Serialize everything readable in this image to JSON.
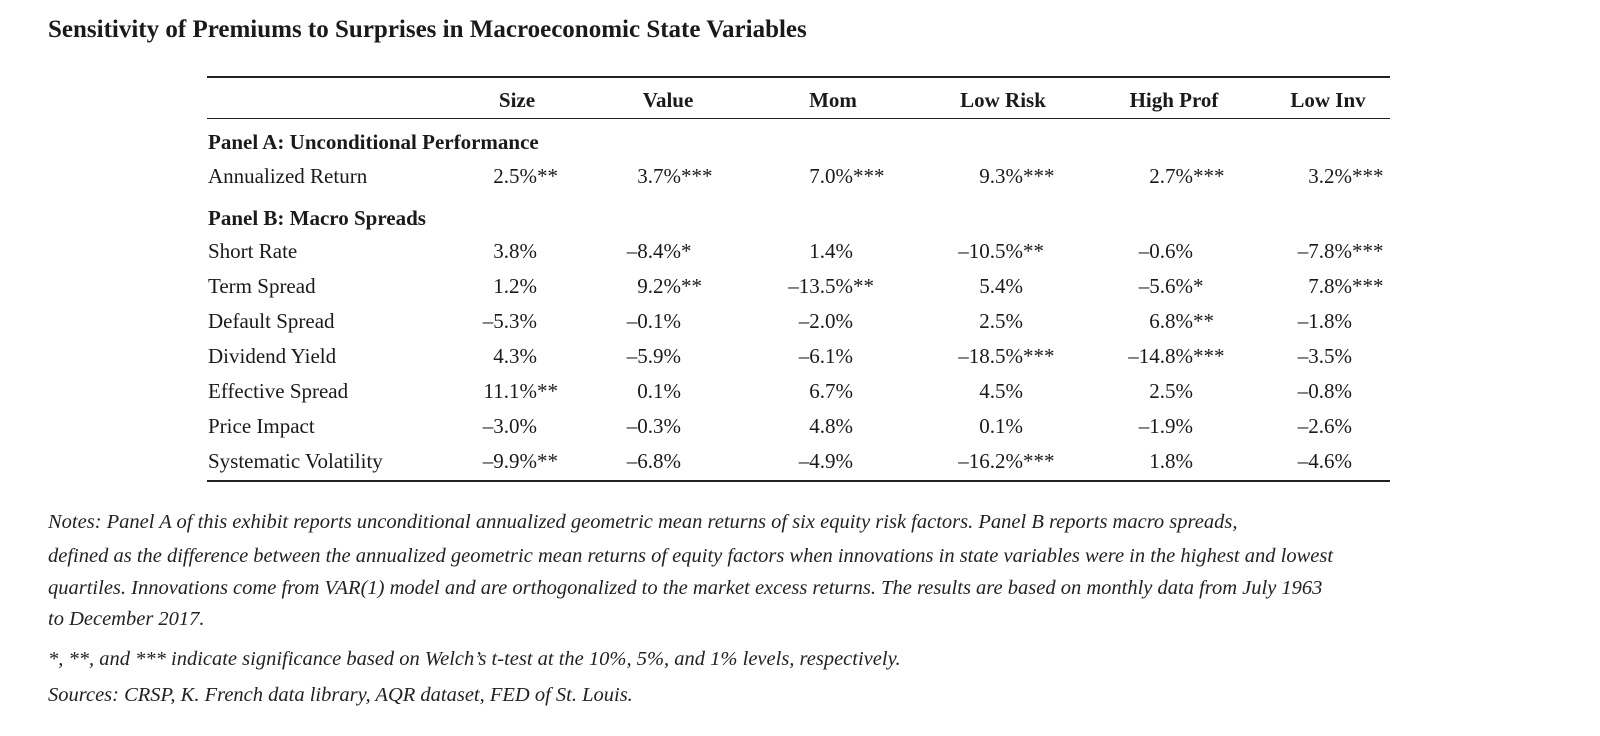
{
  "title": "Sensitivity of Premiums to Surprises in Macroeconomic State Variables",
  "table": {
    "columns": [
      "Size",
      "Value",
      "Mom",
      "Low Risk",
      "High Prof",
      "Low Inv"
    ],
    "panel_a": {
      "heading": "Panel A: Unconditional Performance",
      "rows": [
        {
          "label": "Annualized Return",
          "values": [
            "2.5%**",
            "3.7%***",
            "7.0%***",
            "9.3%***",
            "2.7%***",
            "3.2%***"
          ]
        }
      ]
    },
    "panel_b": {
      "heading": "Panel B: Macro Spreads",
      "rows": [
        {
          "label": "Short Rate",
          "values": [
            "3.8%",
            "–8.4%*",
            "1.4%",
            "–10.5%**",
            "–0.6%",
            "–7.8%***"
          ]
        },
        {
          "label": "Term Spread",
          "values": [
            "1.2%",
            "9.2%**",
            "–13.5%**",
            "5.4%",
            "–5.6%*",
            "7.8%***"
          ]
        },
        {
          "label": "Default Spread",
          "values": [
            "–5.3%",
            "–0.1%",
            "–2.0%",
            "2.5%",
            "6.8%**",
            "–1.8%"
          ]
        },
        {
          "label": "Dividend Yield",
          "values": [
            "4.3%",
            "–5.9%",
            "–6.1%",
            "–18.5%***",
            "–14.8%***",
            "–3.5%"
          ]
        },
        {
          "label": "Effective Spread",
          "values": [
            "11.1%**",
            "0.1%",
            "6.7%",
            "4.5%",
            "2.5%",
            "–0.8%"
          ]
        },
        {
          "label": "Price Impact",
          "values": [
            "–3.0%",
            "–0.3%",
            "4.8%",
            "0.1%",
            "–1.9%",
            "–2.6%"
          ]
        },
        {
          "label": "Systematic Volatility",
          "values": [
            "–9.9%**",
            "–6.8%",
            "–4.9%",
            "–16.2%***",
            "1.8%",
            "–4.6%"
          ]
        }
      ]
    }
  },
  "notes": {
    "lines": [
      "Notes: Panel A of this exhibit reports unconditional annualized geometric mean returns of six equity risk factors. Panel B reports macro spreads,",
      "defined as the difference between the annualized geometric mean returns of equity factors when innovations in state variables were in the highest and lowest",
      "quartiles. Innovations come from VAR(1) model and are orthogonalized to the market excess returns. The results are based on monthly data from July 1963",
      "to December 2017."
    ],
    "significance": "*, **, and *** indicate significance based on Welch’s t-test at the 10%, 5%, and 1% levels, respectively.",
    "sources": "Sources: CRSP, K. French data library, AQR dataset, FED of St. Louis."
  }
}
